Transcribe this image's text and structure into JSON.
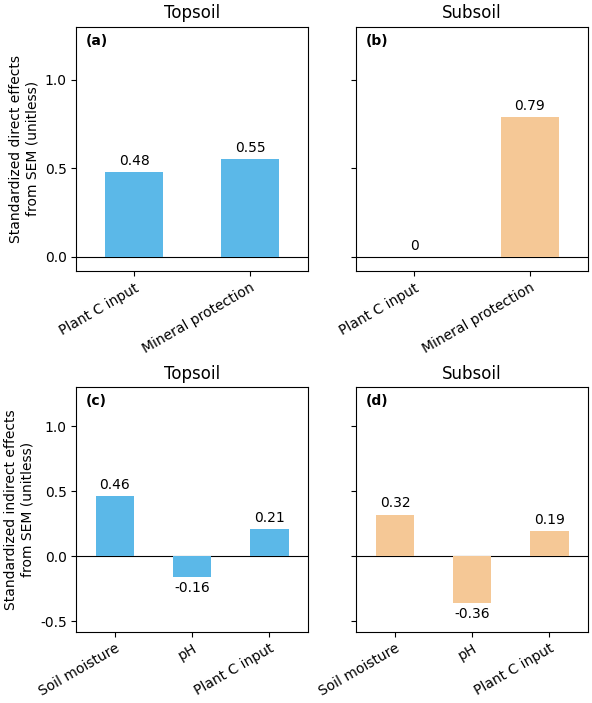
{
  "chart_data": [
    {
      "type": "bar",
      "title": "Topsoil",
      "annotation": "(a)",
      "categories": [
        "Plant C input",
        "Mineral protection"
      ],
      "values": [
        0.48,
        0.55
      ],
      "value_labels": [
        "0.48",
        "0.55"
      ],
      "colors": [
        "#5BB8E8",
        "#5BB8E8"
      ],
      "ylabel": "Standardized direct effects\nfrom SEM (unitless)",
      "ylim": [
        -0.08,
        1.3
      ],
      "yticks": [
        0.0,
        0.5,
        1.0
      ],
      "data_labels": true
    },
    {
      "type": "bar",
      "title": "Subsoil",
      "annotation": "(b)",
      "categories": [
        "Plant C input",
        "Mineral protection"
      ],
      "values": [
        0.0,
        0.79
      ],
      "value_labels": [
        "0",
        "0.79"
      ],
      "colors": [
        "#F5C896",
        "#F5C896"
      ],
      "ylim": [
        -0.08,
        1.3
      ],
      "yticks": [
        0.0,
        0.5,
        1.0
      ],
      "data_labels": true,
      "tick_labels": "x"
    },
    {
      "type": "bar",
      "title": "Topsoil",
      "annotation": "(c)",
      "categories": [
        "Soil moisture",
        "pH",
        "Plant C input"
      ],
      "values": [
        0.46,
        -0.16,
        0.21
      ],
      "value_labels": [
        "0.46",
        "-0.16",
        "0.21"
      ],
      "colors": [
        "#5BB8E8",
        "#5BB8E8",
        "#5BB8E8"
      ],
      "ylabel": "Standardized indirect effects\nfrom SEM (unitless)",
      "ylim": [
        -0.58,
        1.3
      ],
      "yticks": [
        -0.5,
        0.0,
        0.5,
        1.0
      ],
      "data_labels": true
    },
    {
      "type": "bar",
      "title": "Subsoil",
      "annotation": "(d)",
      "categories": [
        "Soil moisture",
        "pH",
        "Plant C input"
      ],
      "values": [
        0.32,
        -0.36,
        0.19
      ],
      "value_labels": [
        "0.32",
        "-0.36",
        "0.19"
      ],
      "colors": [
        "#F5C896",
        "#F5C896",
        "#F5C896"
      ],
      "ylim": [
        -0.58,
        1.3
      ],
      "yticks": [
        -0.5,
        0.0,
        0.5,
        1.0
      ],
      "data_labels": true,
      "tick_labels": "x"
    }
  ]
}
